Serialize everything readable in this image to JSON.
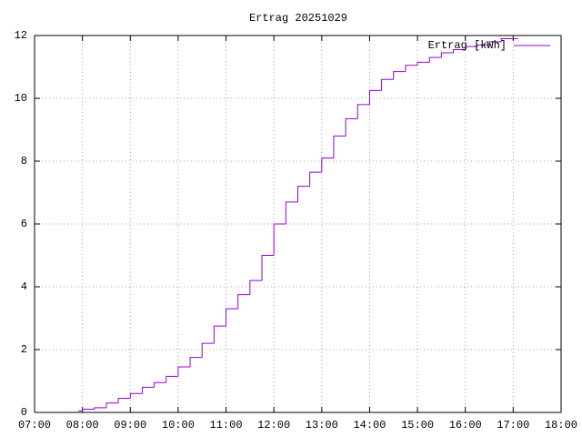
{
  "chart_data": {
    "type": "step",
    "title": "Ertrag 20251029",
    "legend": "top right",
    "grid": true,
    "series": [
      {
        "name": "Ertrag [kWh]",
        "color": "#9400d3",
        "x": [
          "07:55",
          "08:00",
          "08:15",
          "08:30",
          "08:45",
          "09:00",
          "09:15",
          "09:30",
          "09:45",
          "10:00",
          "10:15",
          "10:30",
          "10:45",
          "11:00",
          "11:15",
          "11:30",
          "11:45",
          "12:00",
          "12:15",
          "12:30",
          "12:45",
          "13:00",
          "13:15",
          "13:30",
          "13:45",
          "14:00",
          "14:15",
          "14:30",
          "14:45",
          "15:00",
          "15:15",
          "15:30",
          "15:45",
          "16:00",
          "16:15",
          "16:30",
          "16:45",
          "17:00"
        ],
        "values": [
          0.05,
          0.1,
          0.15,
          0.3,
          0.45,
          0.6,
          0.8,
          0.95,
          1.15,
          1.45,
          1.75,
          2.2,
          2.75,
          3.3,
          3.75,
          4.2,
          5.0,
          6.0,
          6.7,
          7.2,
          7.65,
          8.1,
          8.8,
          9.35,
          9.8,
          10.25,
          10.6,
          10.85,
          11.05,
          11.15,
          11.3,
          11.45,
          11.55,
          11.65,
          11.7,
          11.8,
          11.9,
          11.9
        ]
      }
    ],
    "xlim": [
      "07:00",
      "18:00"
    ],
    "xticks": [
      "07:00",
      "08:00",
      "09:00",
      "10:00",
      "11:00",
      "12:00",
      "13:00",
      "14:00",
      "15:00",
      "16:00",
      "17:00",
      "18:00"
    ],
    "ylim": [
      0,
      12
    ],
    "yticks": [
      0,
      2,
      4,
      6,
      8,
      10,
      12
    ]
  }
}
